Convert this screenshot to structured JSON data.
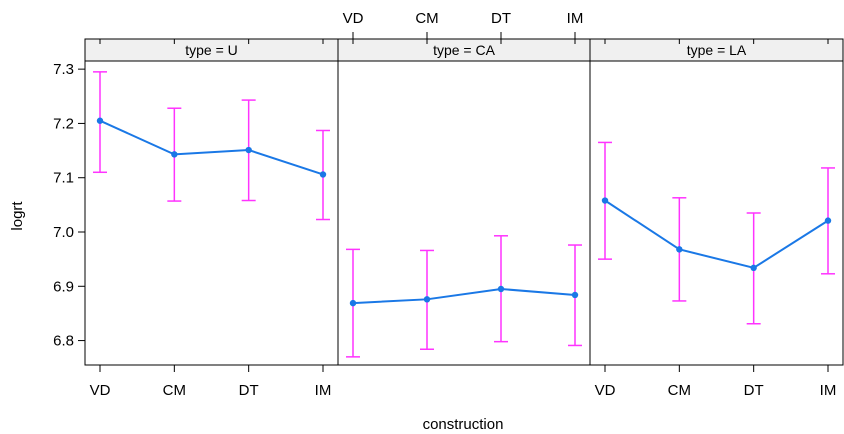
{
  "chart_data": {
    "type": "line",
    "xlabel": "construction",
    "ylabel": "logrt",
    "categories": [
      "VD",
      "CM",
      "DT",
      "IM"
    ],
    "yticks": [
      6.8,
      6.9,
      7.0,
      7.1,
      7.2,
      7.3
    ],
    "ylim": [
      6.755,
      7.315
    ],
    "grid": false,
    "colors": {
      "line": "#1a78e6",
      "errorbar": "#ff33ff",
      "strip": "#f0f0f0",
      "frame": "#000000"
    },
    "panels": [
      {
        "label": "type = U",
        "values": [
          7.205,
          7.143,
          7.151,
          7.106
        ],
        "lower": [
          7.11,
          7.057,
          7.058,
          7.023
        ],
        "upper": [
          7.295,
          7.228,
          7.243,
          7.187
        ]
      },
      {
        "label": "type = CA",
        "values": [
          6.869,
          6.876,
          6.895,
          6.884
        ],
        "lower": [
          6.77,
          6.784,
          6.798,
          6.791
        ],
        "upper": [
          6.968,
          6.966,
          6.993,
          6.976
        ]
      },
      {
        "label": "type = LA",
        "values": [
          7.058,
          6.968,
          6.934,
          7.021
        ],
        "lower": [
          6.95,
          6.873,
          6.831,
          6.923
        ],
        "upper": [
          7.165,
          7.063,
          7.035,
          7.118
        ]
      }
    ]
  }
}
